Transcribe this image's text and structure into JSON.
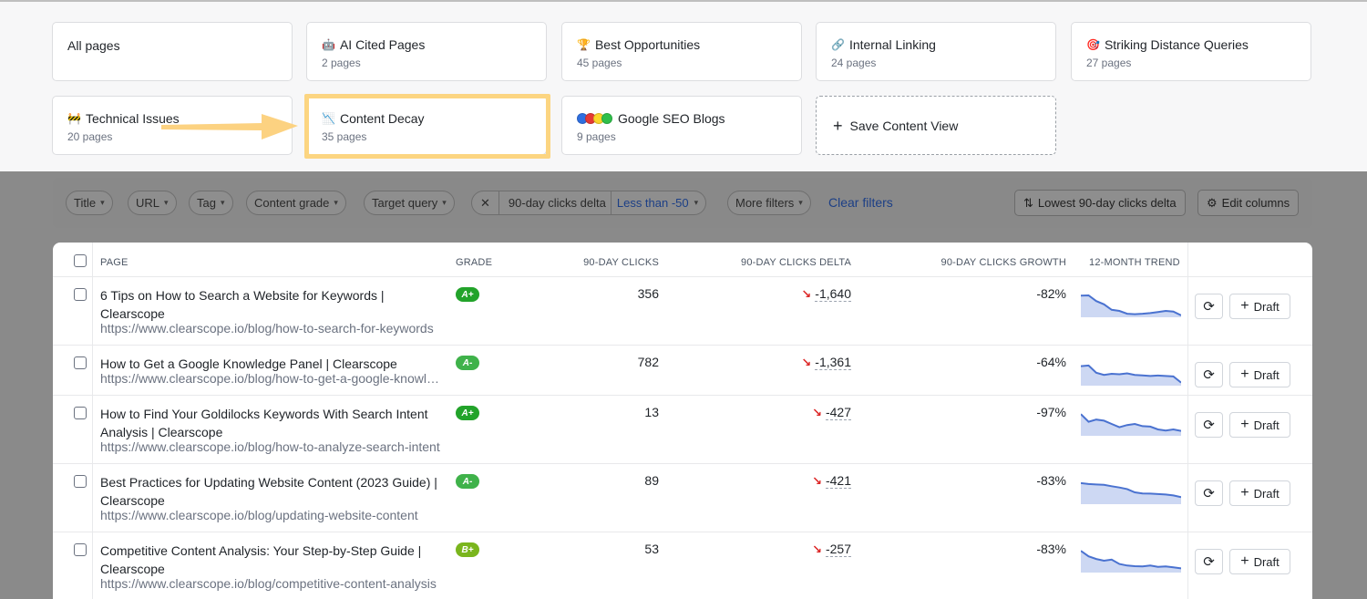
{
  "views": [
    {
      "icon": "",
      "title": "All pages",
      "sub": ""
    },
    {
      "icon": "🤖",
      "title": "AI Cited Pages",
      "sub": "2 pages"
    },
    {
      "icon": "🏆",
      "title": "Best Opportunities",
      "sub": "45 pages"
    },
    {
      "icon": "🔗",
      "title": "Internal Linking",
      "sub": "24 pages"
    },
    {
      "icon": "🎯",
      "title": "Striking Distance Queries",
      "sub": "27 pages"
    },
    {
      "icon": "🚧",
      "title": "Technical Issues",
      "sub": "20 pages"
    },
    {
      "icon": "📉",
      "title": "Content Decay",
      "sub": "35 pages"
    },
    {
      "icon": "dots",
      "title": "Google SEO Blogs",
      "sub": "9 pages"
    }
  ],
  "save_view_label": "Save Content View",
  "filters": {
    "title": "Title",
    "url": "URL",
    "tag": "Tag",
    "content_grade": "Content grade",
    "target_query": "Target query",
    "clicks_delta_label": "90-day clicks delta",
    "clicks_delta_value": "Less than -50",
    "more_filters": "More filters",
    "clear_filters": "Clear filters",
    "sort_label": "Lowest 90-day clicks delta",
    "edit_columns": "Edit columns"
  },
  "columns": {
    "page": "PAGE",
    "grade": "GRADE",
    "clicks": "90-DAY CLICKS",
    "delta": "90-DAY CLICKS DELTA",
    "growth": "90-DAY CLICKS GROWTH",
    "trend": "12-MONTH TREND"
  },
  "draft_label": "Draft",
  "colors": {
    "grade_a_plus": "#22a32a",
    "grade_a_minus": "#3fb24a",
    "grade_b_plus": "#7ab51d",
    "sparkline": "#4a72d0",
    "sparkfill": "#cdd8f3"
  },
  "rows": [
    {
      "title": "6 Tips on How to Search a Website for Keywords | Clearscope",
      "url": "https://www.clearscope.io/blog/how-to-search-for-keywords",
      "grade": "A+",
      "clicks": "356",
      "delta": "-1,640",
      "growth": "-82%",
      "trend": [
        0.95,
        0.96,
        0.7,
        0.55,
        0.3,
        0.25,
        0.12,
        0.1,
        0.12,
        0.15,
        0.2,
        0.25,
        0.22,
        0.05
      ]
    },
    {
      "title": "How to Get a Google Knowledge Panel | Clearscope",
      "url": "https://www.clearscope.io/blog/how-to-get-a-google-knowledge-panel",
      "grade": "A-",
      "clicks": "782",
      "delta": "-1,361",
      "growth": "-64%",
      "trend": [
        0.85,
        0.88,
        0.55,
        0.45,
        0.5,
        0.48,
        0.52,
        0.45,
        0.43,
        0.4,
        0.42,
        0.4,
        0.38,
        0.1
      ]
    },
    {
      "title": "How to Find Your Goldilocks Keywords With Search Intent Analysis | Clearscope",
      "url": "https://www.clearscope.io/blog/how-to-analyze-search-intent",
      "grade": "A+",
      "clicks": "13",
      "delta": "-427",
      "growth": "-97%",
      "trend": [
        0.95,
        0.6,
        0.7,
        0.65,
        0.5,
        0.35,
        0.45,
        0.5,
        0.4,
        0.38,
        0.25,
        0.2,
        0.25,
        0.18
      ]
    },
    {
      "title": "Best Practices for Updating Website Content (2023 Guide) | Clearscope",
      "url": "https://www.clearscope.io/blog/updating-website-content",
      "grade": "A-",
      "clicks": "89",
      "delta": "-421",
      "growth": "-83%",
      "trend": [
        0.92,
        0.88,
        0.86,
        0.84,
        0.78,
        0.72,
        0.65,
        0.5,
        0.45,
        0.44,
        0.42,
        0.4,
        0.36,
        0.28
      ]
    },
    {
      "title": "Competitive Content Analysis: Your Step-by-Step Guide | Clearscope",
      "url": "https://www.clearscope.io/blog/competitive-content-analysis",
      "grade": "B+",
      "clicks": "53",
      "delta": "-257",
      "growth": "-83%",
      "trend": [
        0.95,
        0.7,
        0.58,
        0.5,
        0.55,
        0.35,
        0.28,
        0.25,
        0.24,
        0.28,
        0.22,
        0.24,
        0.2,
        0.15
      ]
    }
  ]
}
